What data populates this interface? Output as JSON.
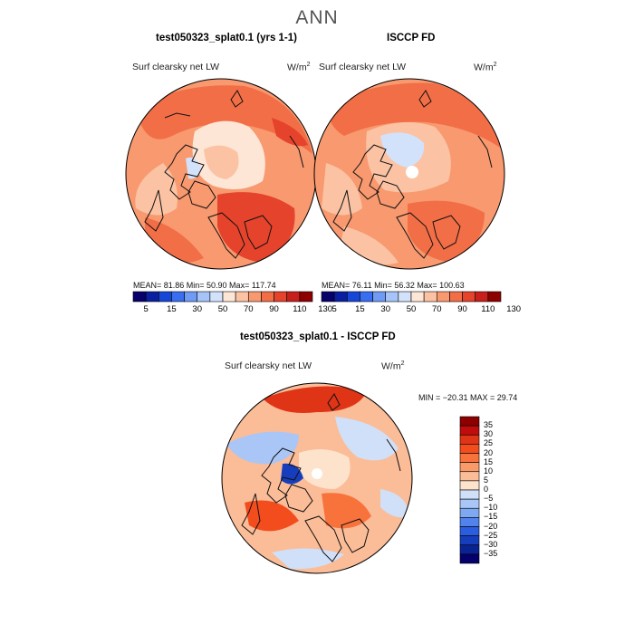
{
  "page": {
    "title": "ANN"
  },
  "top_left": {
    "title": "test050323_splat0.1 (yrs 1-1)",
    "variable": "Surf clearsky net LW",
    "units_base": "W/m",
    "units_exp": "2",
    "stats": "MEAN=  81.86  Min=   50.90  Max= 117.74"
  },
  "top_right": {
    "title": "ISCCP FD",
    "variable": "Surf clearsky net LW",
    "units_base": "W/m",
    "units_exp": "2",
    "stats": "MEAN=  76.11  Min=   56.32  Max= 100.63"
  },
  "top_colorbar": {
    "ticks": [
      "5",
      "15",
      "30",
      "50",
      "70",
      "90",
      "110",
      "130"
    ],
    "colors": [
      "#08006b",
      "#0a1fa0",
      "#1646d6",
      "#3a6ef0",
      "#6f9bf5",
      "#a6c4f8",
      "#d3e2fb",
      "#fde6d6",
      "#fbc3a4",
      "#f8996f",
      "#f26e47",
      "#e5432c",
      "#c71f1b",
      "#8e0000"
    ]
  },
  "bottom": {
    "title": "test050323_splat0.1 - ISCCP FD",
    "variable": "Surf clearsky net LW",
    "units_base": "W/m",
    "units_exp": "2",
    "stats": "MIN = −20.31  MAX =   29.74"
  },
  "bottom_colorbar": {
    "ticks": [
      "35",
      "30",
      "25",
      "20",
      "15",
      "10",
      "5",
      "0",
      "−5",
      "−10",
      "−15",
      "−20",
      "−25",
      "−30",
      "−35"
    ],
    "colors": [
      "#8e0000",
      "#c00c0c",
      "#e03416",
      "#f34d1e",
      "#f8723c",
      "#fa9a6a",
      "#fbbc98",
      "#fde2cc",
      "#cfe0f8",
      "#a9c6f6",
      "#7ea8f2",
      "#5282ec",
      "#2b5de0",
      "#163ebc",
      "#0a2392",
      "#06006b"
    ]
  }
}
